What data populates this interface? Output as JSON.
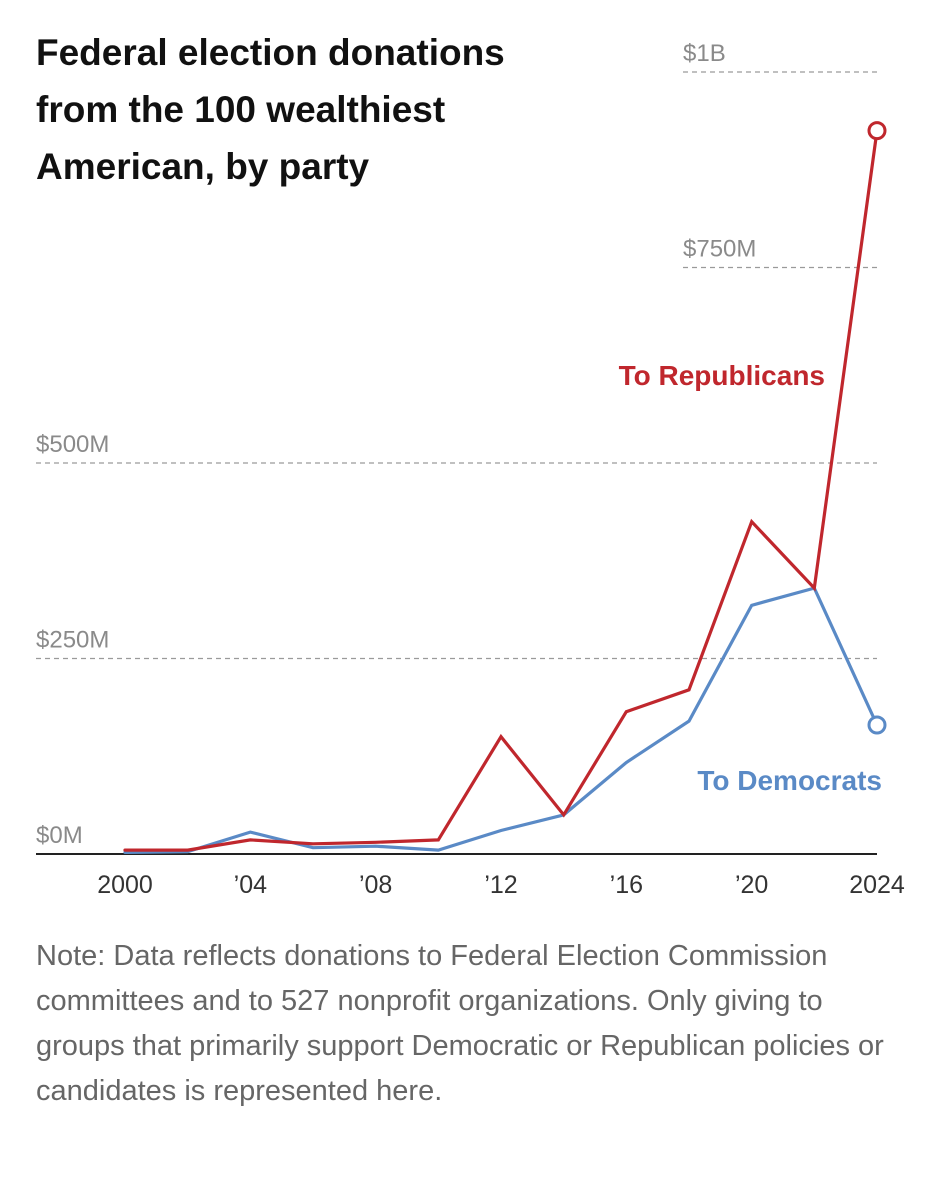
{
  "chart_data": {
    "type": "line",
    "title": "Federal election donations from the 100 wealthiest American, by party",
    "note": "Note: Data reflects donations to Federal Election Commission committees and to 527 nonprofit organizations. Only giving to groups that primarily support Democratic or Republican policies or candidates is represented here.",
    "x": [
      2000,
      2002,
      2004,
      2006,
      2008,
      2010,
      2012,
      2014,
      2016,
      2018,
      2020,
      2022,
      2024
    ],
    "xticks": [
      2000,
      2004,
      2008,
      2012,
      2016,
      2020,
      2024
    ],
    "xtick_labels": [
      "2000",
      "’04",
      "’08",
      "’12",
      "’16",
      "’20",
      "2024"
    ],
    "ylim": [
      0,
      1000
    ],
    "yticks": [
      0,
      250,
      500,
      750,
      1000
    ],
    "ytick_labels": [
      "$0M",
      "$250M",
      "$500M",
      "$750M",
      "$1B"
    ],
    "grid": true,
    "series": [
      {
        "name": "To Republicans",
        "color": "#c0272d",
        "values": [
          5,
          5,
          18,
          13,
          15,
          18,
          150,
          50,
          182,
          210,
          425,
          340,
          925
        ]
      },
      {
        "name": "To Democrats",
        "color": "#5a8ac6",
        "values": [
          2,
          3,
          28,
          8,
          10,
          5,
          30,
          50,
          117,
          170,
          318,
          340,
          165
        ]
      }
    ]
  }
}
